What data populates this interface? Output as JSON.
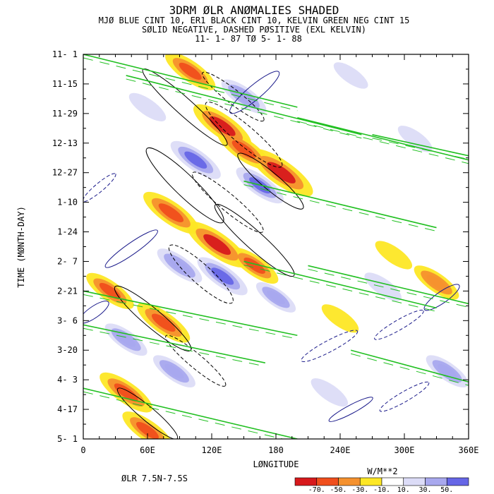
{
  "header": {
    "title": "3DRM ØLR ANØMALIES SHADED",
    "subtitle_1": "MJØ BLUE CINT 10, ER1 BLACK CINT 10, KELVIN GREEN NEG CINT 15",
    "subtitle_2": "SØLID NEGATIVE, DASHED PØSITIVE (EXL KELVIN)",
    "subtitle_3": "11- 1-   87 TØ   5- 1-   88"
  },
  "chart_data": {
    "type": "heatmap",
    "xlabel": "LØNGITUDE",
    "ylabel": "TIME (MØNTH-DAY)",
    "x_ticks": [
      {
        "value": 0,
        "label": "0"
      },
      {
        "value": 60,
        "label": "60E"
      },
      {
        "value": 120,
        "label": "120E"
      },
      {
        "value": 180,
        "label": "180"
      },
      {
        "value": 240,
        "label": "240E"
      },
      {
        "value": 300,
        "label": "300E"
      },
      {
        "value": 360,
        "label": "360E"
      }
    ],
    "y_ticks": [
      "11- 1",
      "11-15",
      "11-29",
      "12-13",
      "12-27",
      "1-10",
      "1-24",
      "2- 7",
      "2-21",
      "3- 6",
      "3-20",
      "4- 3",
      "4-17",
      "5- 1"
    ],
    "xlim": [
      0,
      360
    ],
    "ylim_days": [
      0,
      182
    ],
    "footer_left": "ØLR 7.5N-7.5S",
    "colorbar": {
      "units": "W/M**2",
      "labels": [
        "-70.",
        "-50.",
        "-30.",
        "-10.",
        "10.",
        "30.",
        "50."
      ],
      "colors": [
        "#d7191c",
        "#f04e1c",
        "#f5912e",
        "#fde725",
        "#ffffff",
        "#dcdcf7",
        "#a8a8ee",
        "#6666e6"
      ]
    },
    "anomaly_blobs": [
      {
        "lon": 100,
        "day": 8,
        "value": -45
      },
      {
        "lon": 130,
        "day": 34,
        "value": -60
      },
      {
        "lon": 150,
        "day": 45,
        "value": -50
      },
      {
        "lon": 185,
        "day": 56,
        "value": -70
      },
      {
        "lon": 82,
        "day": 75,
        "value": -55
      },
      {
        "lon": 125,
        "day": 90,
        "value": -65
      },
      {
        "lon": 160,
        "day": 100,
        "value": -40
      },
      {
        "lon": 25,
        "day": 112,
        "value": -40
      },
      {
        "lon": 75,
        "day": 127,
        "value": -50
      },
      {
        "lon": 40,
        "day": 160,
        "value": -50
      },
      {
        "lon": 60,
        "day": 178,
        "value": -45
      },
      {
        "lon": 330,
        "day": 108,
        "value": -35
      },
      {
        "lon": 240,
        "day": 125,
        "value": -20
      },
      {
        "lon": 290,
        "day": 95,
        "value": -20
      },
      {
        "lon": 150,
        "day": 20,
        "value": 35
      },
      {
        "lon": 105,
        "day": 50,
        "value": 45
      },
      {
        "lon": 165,
        "day": 62,
        "value": 40
      },
      {
        "lon": 90,
        "day": 100,
        "value": 35
      },
      {
        "lon": 130,
        "day": 105,
        "value": 45
      },
      {
        "lon": 40,
        "day": 135,
        "value": 30
      },
      {
        "lon": 85,
        "day": 150,
        "value": 30
      },
      {
        "lon": 180,
        "day": 115,
        "value": 25
      },
      {
        "lon": 250,
        "day": 10,
        "value": 15
      },
      {
        "lon": 310,
        "day": 40,
        "value": 15
      },
      {
        "lon": 280,
        "day": 110,
        "value": 20
      },
      {
        "lon": 340,
        "day": 150,
        "value": 30
      },
      {
        "lon": 230,
        "day": 160,
        "value": 20
      },
      {
        "lon": 60,
        "day": 25,
        "value": 20
      }
    ],
    "contours": [
      {
        "wave": "ER1",
        "lon": 95,
        "day": 25,
        "sign": "neg",
        "a": 80,
        "b": 12,
        "angle": 42
      },
      {
        "wave": "ER1",
        "lon": 150,
        "day": 38,
        "sign": "pos",
        "a": 70,
        "b": 14,
        "angle": 40
      },
      {
        "wave": "ER1",
        "lon": 140,
        "day": 20,
        "sign": "pos",
        "a": 55,
        "b": 10,
        "angle": 38
      },
      {
        "wave": "ER1",
        "lon": 175,
        "day": 60,
        "sign": "neg",
        "a": 60,
        "b": 12,
        "angle": 40
      },
      {
        "wave": "ER1",
        "lon": 95,
        "day": 62,
        "sign": "neg",
        "a": 75,
        "b": 15,
        "angle": 44
      },
      {
        "wave": "ER1",
        "lon": 135,
        "day": 70,
        "sign": "pos",
        "a": 65,
        "b": 12,
        "angle": 40
      },
      {
        "wave": "ER1",
        "lon": 160,
        "day": 88,
        "sign": "neg",
        "a": 75,
        "b": 13,
        "angle": 42
      },
      {
        "wave": "ER1",
        "lon": 110,
        "day": 104,
        "sign": "pos",
        "a": 60,
        "b": 14,
        "angle": 42
      },
      {
        "wave": "ER1",
        "lon": 65,
        "day": 125,
        "sign": "neg",
        "a": 70,
        "b": 13,
        "angle": 40
      },
      {
        "wave": "ER1",
        "lon": 105,
        "day": 145,
        "sign": "pos",
        "a": 55,
        "b": 10,
        "angle": 40
      },
      {
        "wave": "ER1",
        "lon": 60,
        "day": 170,
        "sign": "neg",
        "a": 55,
        "b": 10,
        "angle": 40
      },
      {
        "wave": "MJO",
        "lon": 160,
        "day": 18,
        "sign": "neg",
        "a": 45,
        "b": 10,
        "angle": -40
      },
      {
        "wave": "MJO",
        "lon": 45,
        "day": 92,
        "sign": "neg",
        "a": 45,
        "b": 8,
        "angle": -35
      },
      {
        "wave": "MJO",
        "lon": 230,
        "day": 138,
        "sign": "pos",
        "a": 45,
        "b": 8,
        "angle": -28
      },
      {
        "wave": "MJO",
        "lon": 295,
        "day": 128,
        "sign": "pos",
        "a": 40,
        "b": 7,
        "angle": -30
      },
      {
        "wave": "MJO",
        "lon": 250,
        "day": 168,
        "sign": "neg",
        "a": 35,
        "b": 6,
        "angle": -28
      },
      {
        "wave": "MJO",
        "lon": 335,
        "day": 115,
        "sign": "neg",
        "a": 30,
        "b": 8,
        "angle": -35
      },
      {
        "wave": "MJO",
        "lon": 300,
        "day": 162,
        "sign": "pos",
        "a": 40,
        "b": 7,
        "angle": -30
      },
      {
        "wave": "MJO",
        "lon": 15,
        "day": 63,
        "sign": "pos",
        "a": 30,
        "b": 6,
        "angle": -40
      },
      {
        "wave": "MJO",
        "lon": 10,
        "day": 122,
        "sign": "neg",
        "a": 25,
        "b": 8,
        "angle": -35
      }
    ],
    "kelvin_lines": [
      {
        "lon0": 0,
        "day0": 0,
        "lon1": 200,
        "day1": 25
      },
      {
        "lon0": 40,
        "day0": 10,
        "lon1": 260,
        "day1": 38
      },
      {
        "lon0": 200,
        "day0": 30,
        "lon1": 360,
        "day1": 50
      },
      {
        "lon0": 270,
        "day0": 38,
        "lon1": 360,
        "day1": 48
      },
      {
        "lon0": 150,
        "day0": 60,
        "lon1": 330,
        "day1": 82
      },
      {
        "lon0": 150,
        "day0": 98,
        "lon1": 330,
        "day1": 120
      },
      {
        "lon0": 0,
        "day0": 112,
        "lon1": 200,
        "day1": 133
      },
      {
        "lon0": 0,
        "day0": 128,
        "lon1": 170,
        "day1": 146
      },
      {
        "lon0": 0,
        "day0": 158,
        "lon1": 200,
        "day1": 182
      },
      {
        "lon0": 210,
        "day0": 100,
        "lon1": 360,
        "day1": 118
      },
      {
        "lon0": 250,
        "day0": 140,
        "lon1": 360,
        "day1": 155
      }
    ]
  }
}
